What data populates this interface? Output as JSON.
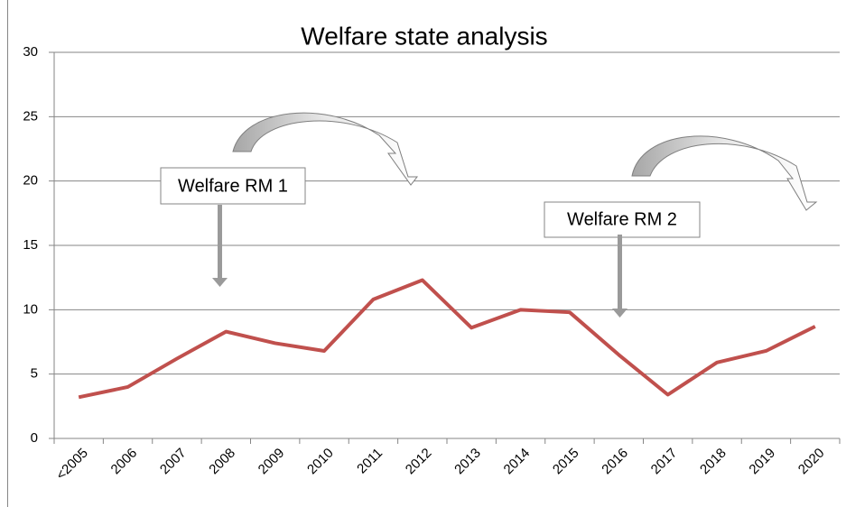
{
  "chart_data": {
    "type": "line",
    "title": "Welfare state analysis",
    "categories": [
      "<2005",
      "2006",
      "2007",
      "2008",
      "2009",
      "2010",
      "2011",
      "2012",
      "2013",
      "2014",
      "2015",
      "2016",
      "2017",
      "2018",
      "2019",
      "2020"
    ],
    "series": [
      {
        "color": "#c0504d",
        "values": [
          3.2,
          4.0,
          6.2,
          8.3,
          7.4,
          6.8,
          10.8,
          12.3,
          8.6,
          10.0,
          9.8,
          6.5,
          3.4,
          5.9,
          6.8,
          8.7
        ]
      }
    ],
    "ylim": [
      0,
      30
    ],
    "yticks": [
      0,
      5,
      10,
      15,
      20,
      25,
      30
    ],
    "grid": true,
    "annotations": [
      "Welfare RM 1",
      "Welfare RM 2"
    ]
  }
}
